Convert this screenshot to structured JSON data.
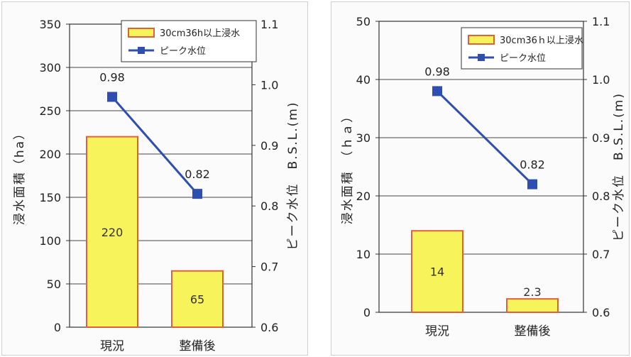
{
  "chart_data": [
    {
      "type": "bar+line",
      "categories": [
        "現況",
        "整備後"
      ],
      "series": [
        {
          "name": "30cm36h以上浸水",
          "type": "bar",
          "axis": "left",
          "values": [
            220,
            65
          ],
          "labels": [
            "220",
            "65"
          ],
          "color": "#f7f35a",
          "edge": "#e0603a"
        },
        {
          "name": "ピーク水位",
          "type": "line",
          "axis": "right",
          "values": [
            0.98,
            0.82
          ],
          "labels": [
            "0.98",
            "0.82"
          ],
          "color": "#2f4fb0"
        }
      ],
      "ylabel": "浸水面積（ha）",
      "y2label": "ピーク水位　B.S.L.(m)",
      "ylim": [
        0,
        350
      ],
      "y2lim": [
        0.6,
        1.1
      ],
      "yticks": [
        "0",
        "50",
        "100",
        "150",
        "200",
        "250",
        "300",
        "350"
      ],
      "y2ticks": [
        "0.6",
        "0.7",
        "0.8",
        "0.9",
        "1.0",
        "1.1"
      ],
      "grid": true,
      "legend": "top-right"
    },
    {
      "type": "bar+line",
      "categories": [
        "現況",
        "整備後"
      ],
      "series": [
        {
          "name": "30cm36ｈ以上浸水",
          "type": "bar",
          "axis": "left",
          "values": [
            14,
            2.3
          ],
          "labels": [
            "14",
            "2.3"
          ],
          "color": "#f7f35a",
          "edge": "#e0603a"
        },
        {
          "name": "ピーク水位",
          "type": "line",
          "axis": "right",
          "values": [
            0.98,
            0.82
          ],
          "labels": [
            "0.98",
            "0.82"
          ],
          "color": "#2f4fb0"
        }
      ],
      "ylabel": "浸水面積　（ｈａ）",
      "y2label": "ピーク水位　B.S.L.(m)",
      "ylim": [
        0,
        50
      ],
      "y2lim": [
        0.6,
        1.1
      ],
      "yticks": [
        "0",
        "10",
        "20",
        "30",
        "40",
        "50"
      ],
      "y2ticks": [
        "0.6",
        "0.7",
        "0.8",
        "0.9",
        "1.0",
        "1.1"
      ],
      "grid": true,
      "legend": "top-right"
    }
  ]
}
